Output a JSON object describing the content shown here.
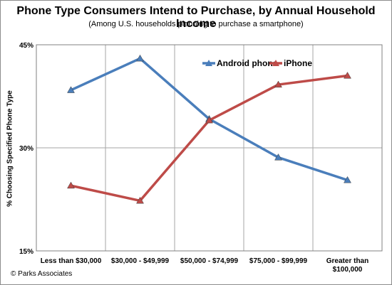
{
  "chart_data": {
    "type": "line",
    "title": "Phone Type Consumers Intend to Purchase, by Annual Household Income",
    "subtitle": "(Among U.S. households planning to purchase a smartphone)",
    "xlabel": "",
    "ylabel": "% Choosing Specified Phone Type",
    "ylim": [
      15,
      45
    ],
    "yticks": [
      "15%",
      "30%",
      "45%"
    ],
    "grid": true,
    "legend_position": "top-right",
    "categories": [
      [
        "Less than $30,000"
      ],
      [
        "$30,000 - $49,999"
      ],
      [
        "$50,000 - $74,999"
      ],
      [
        "$75,000 - $99,999"
      ],
      [
        "Greater than",
        "$100,000"
      ]
    ],
    "series": [
      {
        "name": "Android phone",
        "color": "#4a7ebb",
        "values": [
          38.4,
          43.0,
          34.2,
          28.6,
          25.3
        ]
      },
      {
        "name": "iPhone",
        "color": "#be4b48",
        "values": [
          24.5,
          22.3,
          34.0,
          39.2,
          40.5
        ]
      }
    ]
  },
  "credit": "© Parks Associates"
}
